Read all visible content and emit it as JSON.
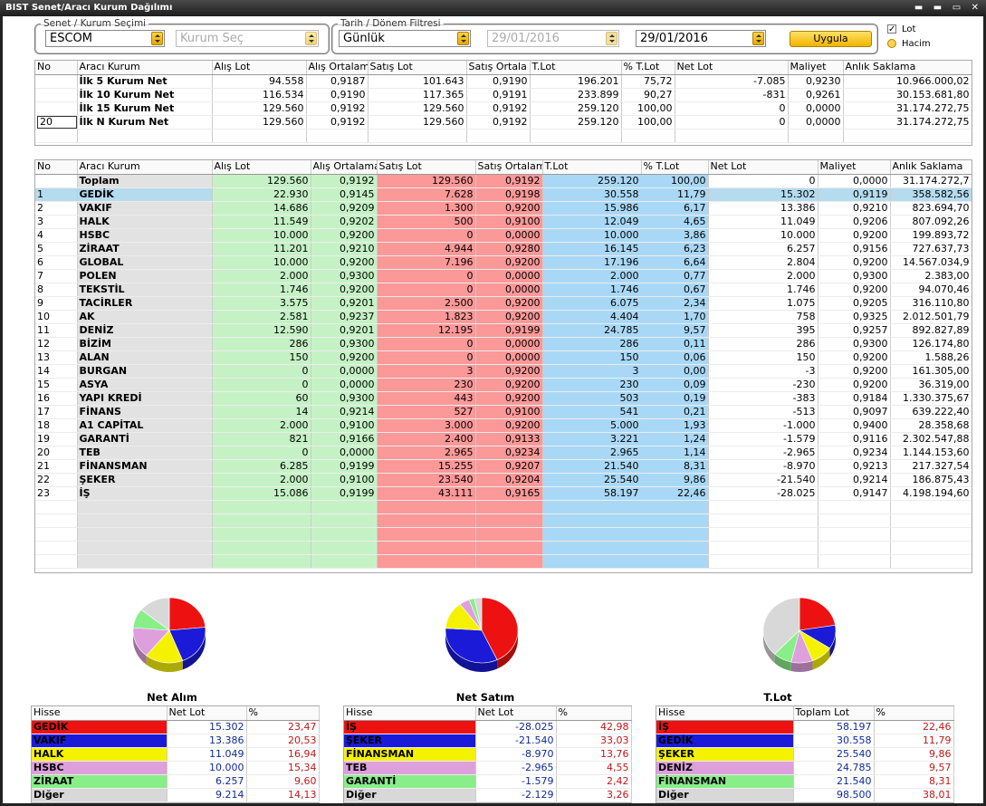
{
  "window": {
    "title": "BIST Senet/Aracı Kurum Dağılımı",
    "controls": "▬ ▬ ▭ ✕"
  },
  "filters": {
    "senet_legend": "Senet / Kurum Seçimi",
    "senet_value": "ESCOM",
    "kurum_placeholder": "Kurum Seç",
    "tarih_legend": "Tarih / Dönem Filtresi",
    "period_value": "Günlük",
    "start_date": "29/01/2016",
    "end_date": "29/01/2016",
    "apply_label": "Uygula",
    "lot_label": "Lot",
    "lot_checked": "✓",
    "hacim_label": "Hacim"
  },
  "top_table": {
    "headers": [
      "No",
      "Aracı Kurum",
      "Alış Lot",
      "Alış Ortalama",
      "Satış Lot",
      "Satış Ortala",
      "T.Lot",
      "% T.Lot",
      "Net Lot",
      "Maliyet",
      "Anlık Saklama"
    ],
    "rows": [
      [
        "",
        "İlk 5 Kurum Net",
        "94.558",
        "0,9187",
        "101.643",
        "0,9190",
        "196.201",
        "75,72",
        "-7.085",
        "0,9230",
        "10.966.000,02"
      ],
      [
        "",
        "İlk 10 Kurum Net",
        "116.534",
        "0,9190",
        "117.365",
        "0,9191",
        "233.899",
        "90,27",
        "-831",
        "0,9261",
        "30.153.681,80"
      ],
      [
        "",
        "İlk 15 Kurum Net",
        "129.560",
        "0,9192",
        "129.560",
        "0,9192",
        "259.120",
        "100,00",
        "0",
        "0,0000",
        "31.174.272,75"
      ],
      [
        "20",
        "İlk N Kurum Net",
        "129.560",
        "0,9192",
        "129.560",
        "0,9192",
        "259.120",
        "100,00",
        "0",
        "0,0000",
        "31.174.272,75"
      ]
    ]
  },
  "main_table": {
    "headers": [
      "No",
      "Aracı Kurum",
      "Alış Lot",
      "Alış Ortalama",
      "Satış Lot",
      "Satış Ortalam",
      "T.Lot",
      "% T.Lot",
      "Net Lot",
      "Maliyet",
      "Anlık Saklama"
    ],
    "rows": [
      [
        "",
        "Toplam",
        "129.560",
        "0,9192",
        "129.560",
        "0,9192",
        "259.120",
        "100,00",
        "0",
        "0,0000",
        "31.174.272,7"
      ],
      [
        "1",
        "GEDİK",
        "22.930",
        "0,9145",
        "7.628",
        "0,9198",
        "30.558",
        "11,79",
        "15.302",
        "0,9119",
        "358.582,56"
      ],
      [
        "2",
        "VAKIF",
        "14.686",
        "0,9209",
        "1.300",
        "0,9200",
        "15.986",
        "6,17",
        "13.386",
        "0,9210",
        "823.694,70"
      ],
      [
        "3",
        "HALK",
        "11.549",
        "0,9202",
        "500",
        "0,9100",
        "12.049",
        "4,65",
        "11.049",
        "0,9206",
        "807.092,26"
      ],
      [
        "4",
        "HSBC",
        "10.000",
        "0,9200",
        "0",
        "0,0000",
        "10.000",
        "3,86",
        "10.000",
        "0,9200",
        "199.893,72"
      ],
      [
        "5",
        "ZİRAAT",
        "11.201",
        "0,9210",
        "4.944",
        "0,9280",
        "16.145",
        "6,23",
        "6.257",
        "0,9156",
        "727.637,73"
      ],
      [
        "6",
        "GLOBAL",
        "10.000",
        "0,9200",
        "7.196",
        "0,9200",
        "17.196",
        "6,64",
        "2.804",
        "0,9200",
        "14.567.034,9"
      ],
      [
        "7",
        "POLEN",
        "2.000",
        "0,9300",
        "0",
        "0,0000",
        "2.000",
        "0,77",
        "2.000",
        "0,9300",
        "2.383,00"
      ],
      [
        "8",
        "TEKSTİL",
        "1.746",
        "0,9200",
        "0",
        "0,0000",
        "1.746",
        "0,67",
        "1.746",
        "0,9200",
        "94.070,46"
      ],
      [
        "9",
        "TACİRLER",
        "3.575",
        "0,9201",
        "2.500",
        "0,9200",
        "6.075",
        "2,34",
        "1.075",
        "0,9205",
        "316.110,80"
      ],
      [
        "10",
        "AK",
        "2.581",
        "0,9237",
        "1.823",
        "0,9200",
        "4.404",
        "1,70",
        "758",
        "0,9325",
        "2.012.501,79"
      ],
      [
        "11",
        "DENİZ",
        "12.590",
        "0,9201",
        "12.195",
        "0,9199",
        "24.785",
        "9,57",
        "395",
        "0,9257",
        "892.827,89"
      ],
      [
        "12",
        "BİZİM",
        "286",
        "0,9300",
        "0",
        "0,0000",
        "286",
        "0,11",
        "286",
        "0,9300",
        "126.174,80"
      ],
      [
        "13",
        "ALAN",
        "150",
        "0,9200",
        "0",
        "0,0000",
        "150",
        "0,06",
        "150",
        "0,9200",
        "1.588,26"
      ],
      [
        "14",
        "BURGAN",
        "0",
        "0,0000",
        "3",
        "0,9200",
        "3",
        "0,00",
        "-3",
        "0,9200",
        "161.305,00"
      ],
      [
        "15",
        "ASYA",
        "0",
        "0,0000",
        "230",
        "0,9200",
        "230",
        "0,09",
        "-230",
        "0,9200",
        "36.319,00"
      ],
      [
        "16",
        "YAPI KREDİ",
        "60",
        "0,9300",
        "443",
        "0,9200",
        "503",
        "0,19",
        "-383",
        "0,9184",
        "1.330.375,67"
      ],
      [
        "17",
        "FİNANS",
        "14",
        "0,9214",
        "527",
        "0,9100",
        "541",
        "0,21",
        "-513",
        "0,9097",
        "639.222,40"
      ],
      [
        "18",
        "A1 CAPİTAL",
        "2.000",
        "0,9100",
        "3.000",
        "0,9200",
        "5.000",
        "1,93",
        "-1.000",
        "0,9400",
        "28.358,68"
      ],
      [
        "19",
        "GARANTİ",
        "821",
        "0,9166",
        "2.400",
        "0,9133",
        "3.221",
        "1,24",
        "-1.579",
        "0,9116",
        "2.302.547,88"
      ],
      [
        "20",
        "TEB",
        "0",
        "0,0000",
        "2.965",
        "0,9234",
        "2.965",
        "1,14",
        "-2.965",
        "0,9234",
        "1.144.153,60"
      ],
      [
        "21",
        "FİNANSMAN",
        "6.285",
        "0,9199",
        "15.255",
        "0,9207",
        "21.540",
        "8,31",
        "-8.970",
        "0,9213",
        "217.327,54"
      ],
      [
        "22",
        "ŞEKER",
        "2.000",
        "0,9100",
        "23.540",
        "0,9204",
        "25.540",
        "9,86",
        "-21.540",
        "0,9214",
        "186.875,43"
      ],
      [
        "23",
        "İŞ",
        "15.086",
        "0,9199",
        "43.111",
        "0,9165",
        "58.197",
        "22,46",
        "-28.025",
        "0,9147",
        "4.198.194,60"
      ]
    ],
    "selected_row": 1
  },
  "summaries": [
    {
      "title": "Net Alım",
      "headers": [
        "Hisse",
        "Net Lot",
        "%"
      ],
      "rows": [
        {
          "name": "GEDİK",
          "value": "15.302",
          "pct": "23,47",
          "color": "#ee1111",
          "pct_num": 23.47
        },
        {
          "name": "VAKIF",
          "value": "13.386",
          "pct": "20,53",
          "color": "#1a1ad8",
          "pct_num": 20.53
        },
        {
          "name": "HALK",
          "value": "11.049",
          "pct": "16,94",
          "color": "#f5f200",
          "pct_num": 16.94
        },
        {
          "name": "HSBC",
          "value": "10.000",
          "pct": "15,34",
          "color": "#dda0dd",
          "pct_num": 15.34
        },
        {
          "name": "ZİRAAT",
          "value": "6.257",
          "pct": "9,60",
          "color": "#88ee88",
          "pct_num": 9.6
        },
        {
          "name": "Diğer",
          "value": "9.214",
          "pct": "14,13",
          "color": "#d8d8d8",
          "pct_num": 14.13
        }
      ]
    },
    {
      "title": "Net Satım",
      "headers": [
        "Hisse",
        "Net Lot",
        "%"
      ],
      "rows": [
        {
          "name": "İŞ",
          "value": "-28.025",
          "pct": "42,98",
          "color": "#ee1111",
          "pct_num": 42.98
        },
        {
          "name": "ŞEKER",
          "value": "-21.540",
          "pct": "33,03",
          "color": "#1a1ad8",
          "pct_num": 33.03
        },
        {
          "name": "FİNANSMAN",
          "value": "-8.970",
          "pct": "13,76",
          "color": "#f5f200",
          "pct_num": 13.76
        },
        {
          "name": "TEB",
          "value": "-2.965",
          "pct": "4,55",
          "color": "#dda0dd",
          "pct_num": 4.55
        },
        {
          "name": "GARANTİ",
          "value": "-1.579",
          "pct": "2,42",
          "color": "#88ee88",
          "pct_num": 2.42
        },
        {
          "name": "Diğer",
          "value": "-2.129",
          "pct": "3,26",
          "color": "#d8d8d8",
          "pct_num": 3.26
        }
      ]
    },
    {
      "title": "T.Lot",
      "headers": [
        "Hisse",
        "Toplam Lot",
        "%"
      ],
      "rows": [
        {
          "name": "İŞ",
          "value": "58.197",
          "pct": "22,46",
          "color": "#ee1111",
          "pct_num": 22.46
        },
        {
          "name": "GEDİK",
          "value": "30.558",
          "pct": "11,79",
          "color": "#1a1ad8",
          "pct_num": 11.79
        },
        {
          "name": "ŞEKER",
          "value": "25.540",
          "pct": "9,86",
          "color": "#f5f200",
          "pct_num": 9.86
        },
        {
          "name": "DENİZ",
          "value": "24.785",
          "pct": "9,57",
          "color": "#dda0dd",
          "pct_num": 9.57
        },
        {
          "name": "FİNANSMAN",
          "value": "21.540",
          "pct": "8,31",
          "color": "#88ee88",
          "pct_num": 8.31
        },
        {
          "name": "Diğer",
          "value": "98.500",
          "pct": "38,01",
          "color": "#d8d8d8",
          "pct_num": 38.01
        }
      ]
    }
  ],
  "chart_data": [
    {
      "type": "pie",
      "title": "Net Alım",
      "categories": [
        "GEDİK",
        "VAKIF",
        "HALK",
        "HSBC",
        "ZİRAAT",
        "Diğer"
      ],
      "values": [
        23.47,
        20.53,
        16.94,
        15.34,
        9.6,
        14.13
      ]
    },
    {
      "type": "pie",
      "title": "Net Satım",
      "categories": [
        "İŞ",
        "ŞEKER",
        "FİNANSMAN",
        "TEB",
        "GARANTİ",
        "Diğer"
      ],
      "values": [
        42.98,
        33.03,
        13.76,
        4.55,
        2.42,
        3.26
      ]
    },
    {
      "type": "pie",
      "title": "T.Lot",
      "categories": [
        "İŞ",
        "GEDİK",
        "ŞEKER",
        "DENİZ",
        "FİNANSMAN",
        "Diğer"
      ],
      "values": [
        22.46,
        11.79,
        9.86,
        9.57,
        8.31,
        38.01
      ]
    }
  ]
}
